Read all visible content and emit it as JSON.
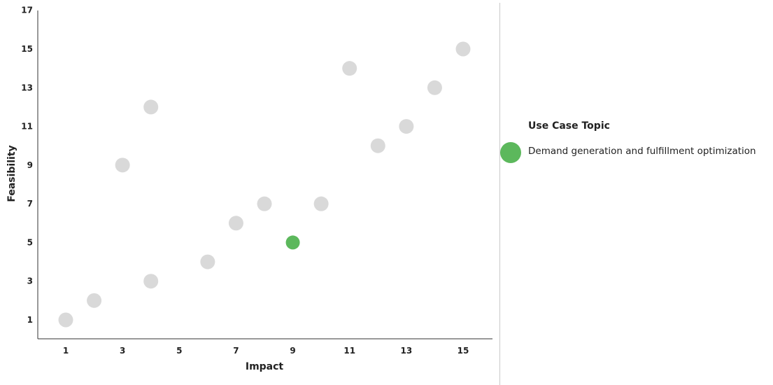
{
  "chart_data": {
    "type": "scatter",
    "xlabel": "Impact",
    "ylabel": "Feasibility",
    "xlim": [
      0,
      16
    ],
    "ylim": [
      0,
      17
    ],
    "x_ticks": [
      "1",
      "3",
      "5",
      "7",
      "9",
      "11",
      "13",
      "15"
    ],
    "y_ticks": [
      "1",
      "3",
      "5",
      "7",
      "9",
      "11",
      "13",
      "15",
      "17"
    ],
    "grid": false,
    "legend_position": "right",
    "legend_title": "Use Case Topic",
    "points": [
      {
        "x": 1,
        "y": 1,
        "highlight": false
      },
      {
        "x": 2,
        "y": 2,
        "highlight": false
      },
      {
        "x": 3,
        "y": 9,
        "highlight": false
      },
      {
        "x": 4,
        "y": 3,
        "highlight": false
      },
      {
        "x": 4,
        "y": 12,
        "highlight": false
      },
      {
        "x": 6,
        "y": 4,
        "highlight": false
      },
      {
        "x": 7,
        "y": 6,
        "highlight": false
      },
      {
        "x": 8,
        "y": 7,
        "highlight": false
      },
      {
        "x": 9,
        "y": 5,
        "highlight": true
      },
      {
        "x": 10,
        "y": 7,
        "highlight": false
      },
      {
        "x": 11,
        "y": 14,
        "highlight": false
      },
      {
        "x": 12,
        "y": 10,
        "highlight": false
      },
      {
        "x": 13,
        "y": 11,
        "highlight": false
      },
      {
        "x": 14,
        "y": 13,
        "highlight": false
      },
      {
        "x": 15,
        "y": 15,
        "highlight": false
      }
    ],
    "series": [
      {
        "name": "Demand generation and fulfillment optimization",
        "color": "#5cb85c"
      }
    ],
    "colors": {
      "highlight": "#5cb85c",
      "default": "#d9d9d9",
      "axis": "#333333",
      "divider": "#c8c8c8"
    }
  }
}
